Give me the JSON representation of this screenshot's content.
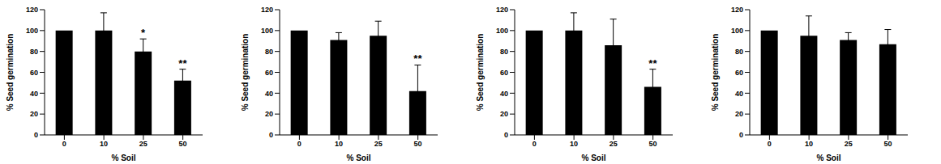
{
  "chart_data": [
    {
      "type": "bar",
      "x_label": "% Soil",
      "y_label": "% Seed germination",
      "categories": [
        "0",
        "10",
        "25",
        "50"
      ],
      "values": [
        100,
        100,
        80,
        52
      ],
      "errors": [
        0,
        17,
        12,
        11
      ],
      "annotations": [
        null,
        null,
        "*",
        "**"
      ],
      "color": "#000000",
      "ylim": [
        0,
        120
      ],
      "yticks": [
        0,
        20,
        40,
        60,
        80,
        100,
        120
      ],
      "grid": false
    },
    {
      "type": "bar",
      "x_label": "% Soil",
      "y_label": "% Seed germination",
      "categories": [
        "0",
        "10",
        "25",
        "50"
      ],
      "values": [
        100,
        91,
        95,
        42
      ],
      "errors": [
        0,
        7,
        14,
        25
      ],
      "annotations": [
        null,
        null,
        null,
        "**"
      ],
      "color": "#000000",
      "ylim": [
        0,
        120
      ],
      "yticks": [
        0,
        20,
        40,
        60,
        80,
        100,
        120
      ],
      "grid": false
    },
    {
      "type": "bar",
      "x_label": "% Soil",
      "y_label": "% Seed germination",
      "categories": [
        "0",
        "10",
        "25",
        "50"
      ],
      "values": [
        100,
        100,
        86,
        46
      ],
      "errors": [
        0,
        17,
        25,
        17
      ],
      "annotations": [
        null,
        null,
        null,
        "**"
      ],
      "color": "#000000",
      "ylim": [
        0,
        120
      ],
      "yticks": [
        0,
        20,
        40,
        60,
        80,
        100,
        120
      ],
      "grid": false
    },
    {
      "type": "bar",
      "x_label": "% Soil",
      "y_label": "% Seed germination",
      "categories": [
        "0",
        "10",
        "25",
        "50"
      ],
      "values": [
        100,
        95,
        91,
        87
      ],
      "errors": [
        0,
        19,
        7,
        14
      ],
      "annotations": [
        null,
        null,
        null,
        null
      ],
      "color": "#000000",
      "ylim": [
        0,
        120
      ],
      "yticks": [
        0,
        20,
        40,
        60,
        80,
        100,
        120
      ],
      "grid": false
    }
  ]
}
